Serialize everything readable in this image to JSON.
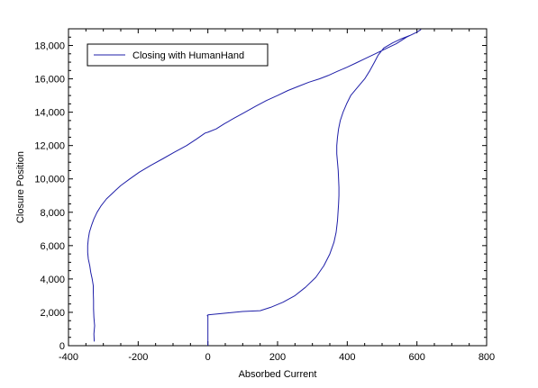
{
  "chart_data": {
    "type": "line",
    "title": "",
    "xlabel": "Absorbed Current",
    "ylabel": "Closure Position",
    "xlim": [
      -400,
      800
    ],
    "ylim": [
      0,
      19000
    ],
    "x_ticks": [
      -400,
      -200,
      0,
      200,
      400,
      600,
      800
    ],
    "y_ticks": [
      0,
      2000,
      4000,
      6000,
      8000,
      10000,
      12000,
      14000,
      16000,
      18000
    ],
    "x_tick_labels": [
      "-400",
      "-200",
      "0",
      "200",
      "400",
      "600",
      "800"
    ],
    "y_tick_labels": [
      "0",
      "2,000",
      "4,000",
      "6,000",
      "8,000",
      "10,000",
      "12,000",
      "14,000",
      "16,000",
      "18,000"
    ],
    "grid": false,
    "legend_position": "top-left",
    "series": [
      {
        "name": "Closing with HumanHand",
        "color": "#1f1fa8",
        "x": [
          -326,
          -327,
          -325,
          -327,
          -328,
          -328,
          -329,
          -329,
          -332,
          -336,
          -339,
          -343,
          -345,
          -345,
          -343,
          -340,
          -334,
          -327,
          -318,
          -306,
          -291,
          -271,
          -250,
          -224,
          -197,
          -165,
          -130,
          -96,
          -61,
          -32,
          -8,
          0,
          24,
          47,
          76,
          107,
          137,
          168,
          200,
          230,
          260,
          290,
          320,
          345,
          372,
          400,
          425,
          450,
          480,
          510,
          540,
          570,
          600,
          611,
          600,
          580,
          555,
          530,
          505,
          488,
          478,
          465,
          450,
          430,
          410,
          398,
          388,
          380,
          375,
          372,
          370,
          370,
          372,
          374,
          375,
          376,
          376,
          375,
          372,
          368,
          362,
          350,
          333,
          310,
          280,
          250,
          215,
          180,
          150,
          100,
          50,
          0,
          0,
          -2,
          0,
          0
        ],
        "y": [
          250,
          700,
          1200,
          1700,
          2200,
          2700,
          3200,
          3600,
          4000,
          4400,
          4800,
          5200,
          5600,
          6000,
          6400,
          6800,
          7200,
          7600,
          8000,
          8400,
          8800,
          9200,
          9600,
          10000,
          10400,
          10800,
          11200,
          11600,
          12000,
          12400,
          12750,
          12800,
          13000,
          13300,
          13650,
          14000,
          14350,
          14700,
          15000,
          15300,
          15550,
          15800,
          16000,
          16200,
          16450,
          16700,
          16950,
          17200,
          17500,
          17800,
          18100,
          18500,
          18800,
          18950,
          18800,
          18600,
          18400,
          18150,
          17850,
          17400,
          17000,
          16500,
          16000,
          15500,
          15000,
          14500,
          14000,
          13500,
          13000,
          12500,
          12000,
          11500,
          11000,
          10500,
          10000,
          9500,
          9000,
          8500,
          7500,
          6800,
          6200,
          5500,
          4800,
          4100,
          3500,
          3000,
          2600,
          2300,
          2100,
          2050,
          1950,
          1850,
          1800,
          1800,
          1800,
          0
        ]
      }
    ]
  }
}
